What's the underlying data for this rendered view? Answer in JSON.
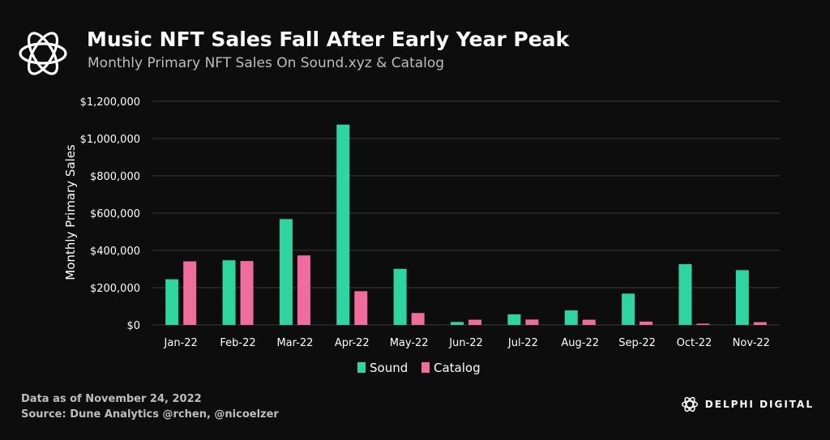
{
  "header": {
    "title": "Music NFT Sales Fall After Early Year Peak",
    "subtitle": "Monthly Primary NFT Sales On Sound.xyz & Catalog",
    "logo_icon": "knot-logo-icon"
  },
  "footer": {
    "data_note": "Data as of November 24, 2022",
    "source_note": "Source: Dune Analytics @rchen, @nicoelzer",
    "brand": "DELPHI DIGITAL"
  },
  "colors": {
    "background": "#0d0d0d",
    "sound": "#2fd4a0",
    "catalog": "#ee6d9c",
    "grid": "#3a3a3a",
    "text": "#ffffff",
    "muted": "#bdbdbd"
  },
  "chart_data": {
    "type": "bar",
    "title": "",
    "xlabel": "",
    "ylabel": "Monthly Primary Sales",
    "ylim": [
      0,
      1200000
    ],
    "yticks": [
      0,
      200000,
      400000,
      600000,
      800000,
      1000000,
      1200000
    ],
    "ytick_labels": [
      "$0",
      "$200,000",
      "$400,000",
      "$600,000",
      "$800,000",
      "$1,000,000",
      "$1,200,000"
    ],
    "categories": [
      "Jan-22",
      "Feb-22",
      "Mar-22",
      "Apr-22",
      "May-22",
      "Jun-22",
      "Jul-22",
      "Aug-22",
      "Sep-22",
      "Oct-22",
      "Nov-22"
    ],
    "series": [
      {
        "name": "Sound",
        "color": "#2fd4a0",
        "values": [
          245000,
          347000,
          568000,
          1075000,
          301000,
          16000,
          57000,
          78000,
          168000,
          326000,
          294000
        ]
      },
      {
        "name": "Catalog",
        "color": "#ee6d9c",
        "values": [
          341000,
          343000,
          373000,
          181000,
          64000,
          28000,
          29000,
          28000,
          18000,
          7000,
          15000
        ]
      }
    ],
    "grid": true,
    "legend": "bottom-center"
  }
}
